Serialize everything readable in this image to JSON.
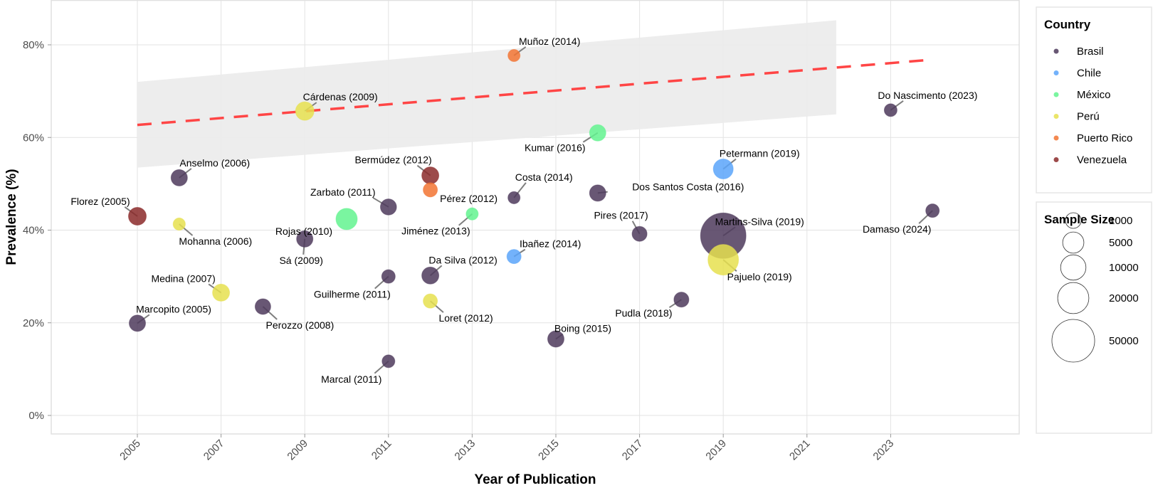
{
  "chart_data": {
    "type": "scatter",
    "title": "",
    "xlabel": "Year of Publication",
    "ylabel": "Prevalence (%)",
    "xlim": [
      2002.94,
      2026.07
    ],
    "ylim": [
      -4,
      89.7
    ],
    "x_ticks": [
      "2005",
      "2007",
      "2009",
      "2011",
      "2013",
      "2015",
      "2017",
      "2019",
      "2021",
      "2023"
    ],
    "y_ticks": [
      "0%",
      "20%",
      "40%",
      "60%",
      "80%"
    ],
    "grid": true,
    "legend": {
      "position": "right",
      "country_title": "Country",
      "countries": [
        {
          "name": "Brasil",
          "color": "#4E3A5C"
        },
        {
          "name": "Chile",
          "color": "#5AA5FA"
        },
        {
          "name": "México",
          "color": "#63F38F"
        },
        {
          "name": "Perú",
          "color": "#E6E04F"
        },
        {
          "name": "Puerto Rico",
          "color": "#F27433"
        },
        {
          "name": "Venezuela",
          "color": "#8B2A2A"
        }
      ],
      "size_title": "Sample Size",
      "sizes": [
        {
          "label": "1000",
          "value": 1000
        },
        {
          "label": "5000",
          "value": 5000
        },
        {
          "label": "10000",
          "value": 10000
        },
        {
          "label": "20000",
          "value": 20000
        },
        {
          "label": "50000",
          "value": 50000
        }
      ]
    },
    "trend": {
      "style": "dashed",
      "color": "#FF4545",
      "x": [
        2005,
        2024
      ],
      "y": [
        62.7,
        76.8
      ],
      "ci": {
        "x": [
          2005,
          2021.7
        ],
        "lower": [
          53.5,
          65.0
        ],
        "upper": [
          72.0,
          85.3
        ],
        "color": "#EBEBEB"
      }
    },
    "points": [
      {
        "label": "Florez (2005)",
        "year": 2005,
        "prevalence": 43.0,
        "country": "Venezuela",
        "n": 2160
      },
      {
        "label": "Marcopito (2005)",
        "year": 2005,
        "prevalence": 19.9,
        "country": "Brasil",
        "n": 1320
      },
      {
        "label": "Anselmo (2006)",
        "year": 2006,
        "prevalence": 51.3,
        "country": "Brasil",
        "n": 1320
      },
      {
        "label": "Mohanna (2006)",
        "year": 2006,
        "prevalence": 41.3,
        "country": "Perú",
        "n": 50
      },
      {
        "label": "Medina (2007)",
        "year": 2007,
        "prevalence": 26.5,
        "country": "Perú",
        "n": 1700
      },
      {
        "label": "Perozzo (2008)",
        "year": 2008,
        "prevalence": 23.5,
        "country": "Brasil",
        "n": 980
      },
      {
        "label": "Cárdenas (2009)",
        "year": 2009,
        "prevalence": 65.7,
        "country": "Perú",
        "n": 2650
      },
      {
        "label": "Sá (2009)",
        "year": 2009,
        "prevalence": 38.1,
        "country": "Brasil",
        "n": 1320
      },
      {
        "label": "Rojas (2010)",
        "year": 2010,
        "prevalence": 42.4,
        "country": "México",
        "n": 5140
      },
      {
        "label": "Zarbato (2011)",
        "year": 2011,
        "prevalence": 45.0,
        "country": "Brasil",
        "n": 1200
      },
      {
        "label": "Guilherme (2011)",
        "year": 2011,
        "prevalence": 30.0,
        "country": "Brasil",
        "n": 260
      },
      {
        "label": "Marcal (2011)",
        "year": 2011,
        "prevalence": 11.7,
        "country": "Brasil",
        "n": 120
      },
      {
        "label": "Bermúdez (2012)",
        "year": 2012,
        "prevalence": 51.8,
        "country": "Venezuela",
        "n": 1700
      },
      {
        "label": "Pérez (2012)",
        "year": 2012,
        "prevalence": 48.7,
        "country": "Puerto Rico",
        "n": 450
      },
      {
        "label": "Da Silva (2012)",
        "year": 2012,
        "prevalence": 30.2,
        "country": "Brasil",
        "n": 1700
      },
      {
        "label": "Loret (2012)",
        "year": 2012,
        "prevalence": 24.7,
        "country": "Perú",
        "n": 450
      },
      {
        "label": "Jiménez (2013)",
        "year": 2013,
        "prevalence": 43.5,
        "country": "México",
        "n": 40
      },
      {
        "label": "Muñoz (2014)",
        "year": 2014,
        "prevalence": 77.7,
        "country": "Puerto Rico",
        "n": 40
      },
      {
        "label": "Costa (2014)",
        "year": 2014,
        "prevalence": 47.0,
        "country": "Brasil",
        "n": 40
      },
      {
        "label": "Ibañez (2014)",
        "year": 2014,
        "prevalence": 34.3,
        "country": "Chile",
        "n": 450
      },
      {
        "label": "Boing (2015)",
        "year": 2015,
        "prevalence": 16.5,
        "country": "Brasil",
        "n": 1320
      },
      {
        "label": "Kumar (2016)",
        "year": 2016,
        "prevalence": 61.0,
        "country": "México",
        "n": 1320
      },
      {
        "label": "Dos Santos Costa (2016)",
        "year": 2016,
        "prevalence": 48.0,
        "country": "Brasil",
        "n": 1320
      },
      {
        "label": "Pires (2017)",
        "year": 2017,
        "prevalence": 39.2,
        "country": "Brasil",
        "n": 690
      },
      {
        "label": "Pudla (2018)",
        "year": 2018,
        "prevalence": 25.0,
        "country": "Brasil",
        "n": 690
      },
      {
        "label": "Petermann (2019)",
        "year": 2019,
        "prevalence": 53.2,
        "country": "Chile",
        "n": 3800
      },
      {
        "label": "Martins-Silva (2019)",
        "year": 2019,
        "prevalence": 38.8,
        "country": "Brasil",
        "n": 59000
      },
      {
        "label": "Pajuelo (2019)",
        "year": 2019,
        "prevalence": 33.6,
        "country": "Perú",
        "n": 18900
      },
      {
        "label": "Do Nascimento (2023)",
        "year": 2023,
        "prevalence": 65.9,
        "country": "Brasil",
        "n": 120
      },
      {
        "label": "Damaso (2024)",
        "year": 2024,
        "prevalence": 44.2,
        "country": "Brasil",
        "n": 260
      }
    ]
  }
}
